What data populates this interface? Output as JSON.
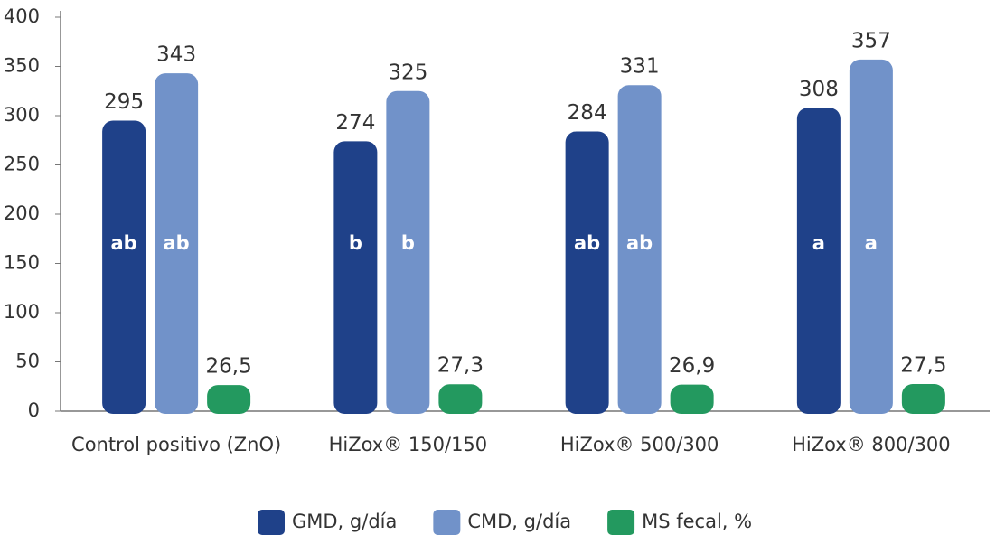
{
  "chart_data": {
    "type": "bar",
    "categories": [
      "Control positivo (ZnO)",
      "HiZox® 150/150",
      "HiZox® 500/300",
      "HiZox® 800/300"
    ],
    "series": [
      {
        "name": "GMD, g/día",
        "color": "#1f4189",
        "values": [
          295,
          274,
          284,
          308
        ],
        "annotations": [
          "ab",
          "b",
          "ab",
          "a"
        ]
      },
      {
        "name": "CMD, g/día",
        "color": "#7192c9",
        "values": [
          343,
          325,
          331,
          357
        ],
        "annotations": [
          "ab",
          "b",
          "ab",
          "a"
        ]
      },
      {
        "name": "MS fecal, %",
        "color": "#23995f",
        "values": [
          26.5,
          27.3,
          26.9,
          27.5
        ],
        "value_labels": [
          "26,5",
          "27,3",
          "26,9",
          "27,5"
        ]
      }
    ],
    "ylim": [
      0,
      400
    ],
    "yticks": [
      0,
      50,
      100,
      150,
      200,
      250,
      300,
      350,
      400
    ],
    "legend": "bottom"
  }
}
